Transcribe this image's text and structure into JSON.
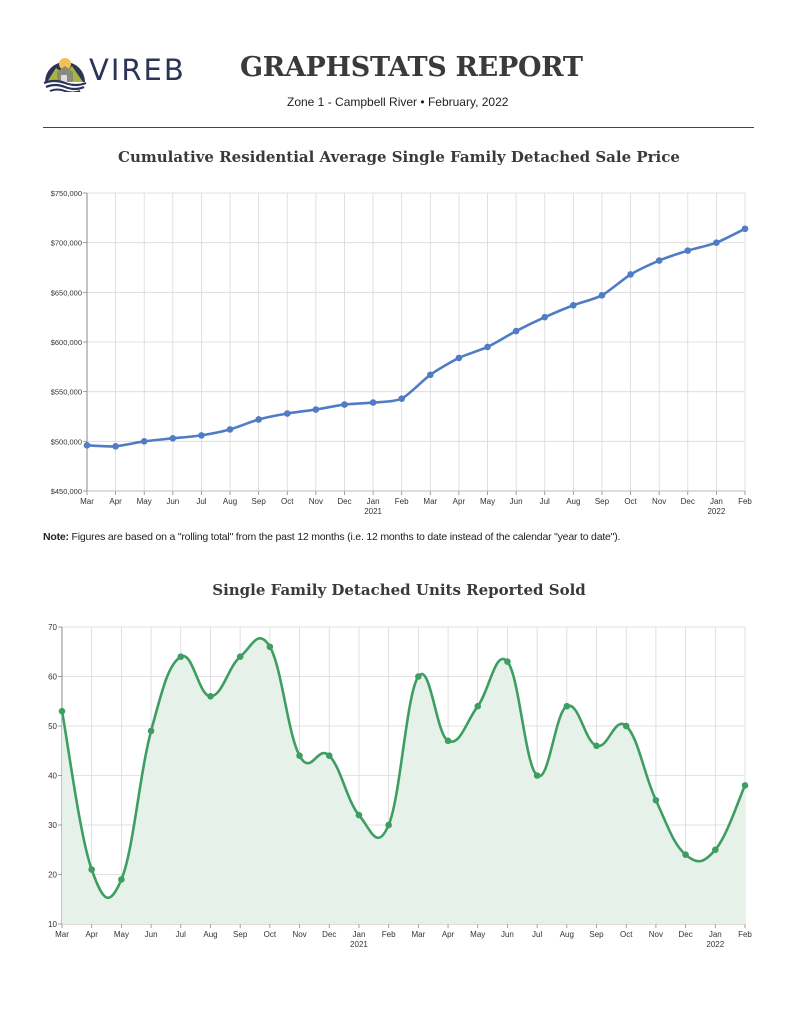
{
  "header": {
    "logo_text": "VIREB",
    "title": "GRAPHSTATS REPORT",
    "subtitle_zone": "Zone 1 - Campbell River",
    "subtitle_separator": "•",
    "subtitle_date": "February, 2022"
  },
  "note": {
    "label": "Note:",
    "text": " Figures are based on a \"rolling total\" from the past 12 months (i.e. 12 months to date instead of the calendar \"year to date\")."
  },
  "colors": {
    "price_line": "#4f7cc4",
    "units_line": "#3e9e62",
    "units_fill": "#e6f2e9",
    "grid": "#d9d9d9",
    "axis": "#888888"
  },
  "chart_data": [
    {
      "type": "line",
      "title": "Cumulative Residential Average Single Family Detached Sale Price",
      "xlabel": "",
      "ylabel": "",
      "categories": [
        "Mar",
        "Apr",
        "May",
        "Jun",
        "Jul",
        "Aug",
        "Sep",
        "Oct",
        "Nov",
        "Dec",
        "Jan",
        "Feb",
        "Mar",
        "Apr",
        "May",
        "Jun",
        "Jul",
        "Aug",
        "Sep",
        "Oct",
        "Nov",
        "Dec",
        "Jan",
        "Feb"
      ],
      "year_labels": {
        "10": "2021",
        "22": "2022"
      },
      "series": [
        {
          "name": "Average Sale Price",
          "values": [
            496000,
            495000,
            500000,
            503000,
            506000,
            512000,
            522000,
            528000,
            532000,
            537000,
            539000,
            543000,
            567000,
            584000,
            595000,
            611000,
            625000,
            637000,
            647000,
            668000,
            682000,
            692000,
            700000,
            714000
          ]
        }
      ],
      "ylim": [
        450000,
        750000
      ],
      "yticks": [
        450000,
        500000,
        550000,
        600000,
        650000,
        700000,
        750000
      ],
      "ytick_labels": [
        "$450,000",
        "$500,000",
        "$550,000",
        "$600,000",
        "$650,000",
        "$700,000",
        "$750,000"
      ],
      "grid": true,
      "legend": "none"
    },
    {
      "type": "area",
      "title": "Single Family Detached Units Reported Sold",
      "xlabel": "",
      "ylabel": "",
      "categories": [
        "Mar",
        "Apr",
        "May",
        "Jun",
        "Jul",
        "Aug",
        "Sep",
        "Oct",
        "Nov",
        "Dec",
        "Jan",
        "Feb",
        "Mar",
        "Apr",
        "May",
        "Jun",
        "Jul",
        "Aug",
        "Sep",
        "Oct",
        "Nov",
        "Dec",
        "Jan",
        "Feb"
      ],
      "year_labels": {
        "10": "2021",
        "22": "2022"
      },
      "series": [
        {
          "name": "Units Sold",
          "values": [
            53,
            21,
            19,
            49,
            64,
            56,
            64,
            66,
            44,
            44,
            32,
            30,
            60,
            47,
            54,
            63,
            40,
            54,
            46,
            50,
            35,
            24,
            25,
            38
          ]
        }
      ],
      "ylim": [
        10,
        70
      ],
      "yticks": [
        10,
        20,
        30,
        40,
        50,
        60,
        70
      ],
      "ytick_labels": [
        "10",
        "20",
        "30",
        "40",
        "50",
        "60",
        "70"
      ],
      "grid": true,
      "legend": "none"
    }
  ]
}
